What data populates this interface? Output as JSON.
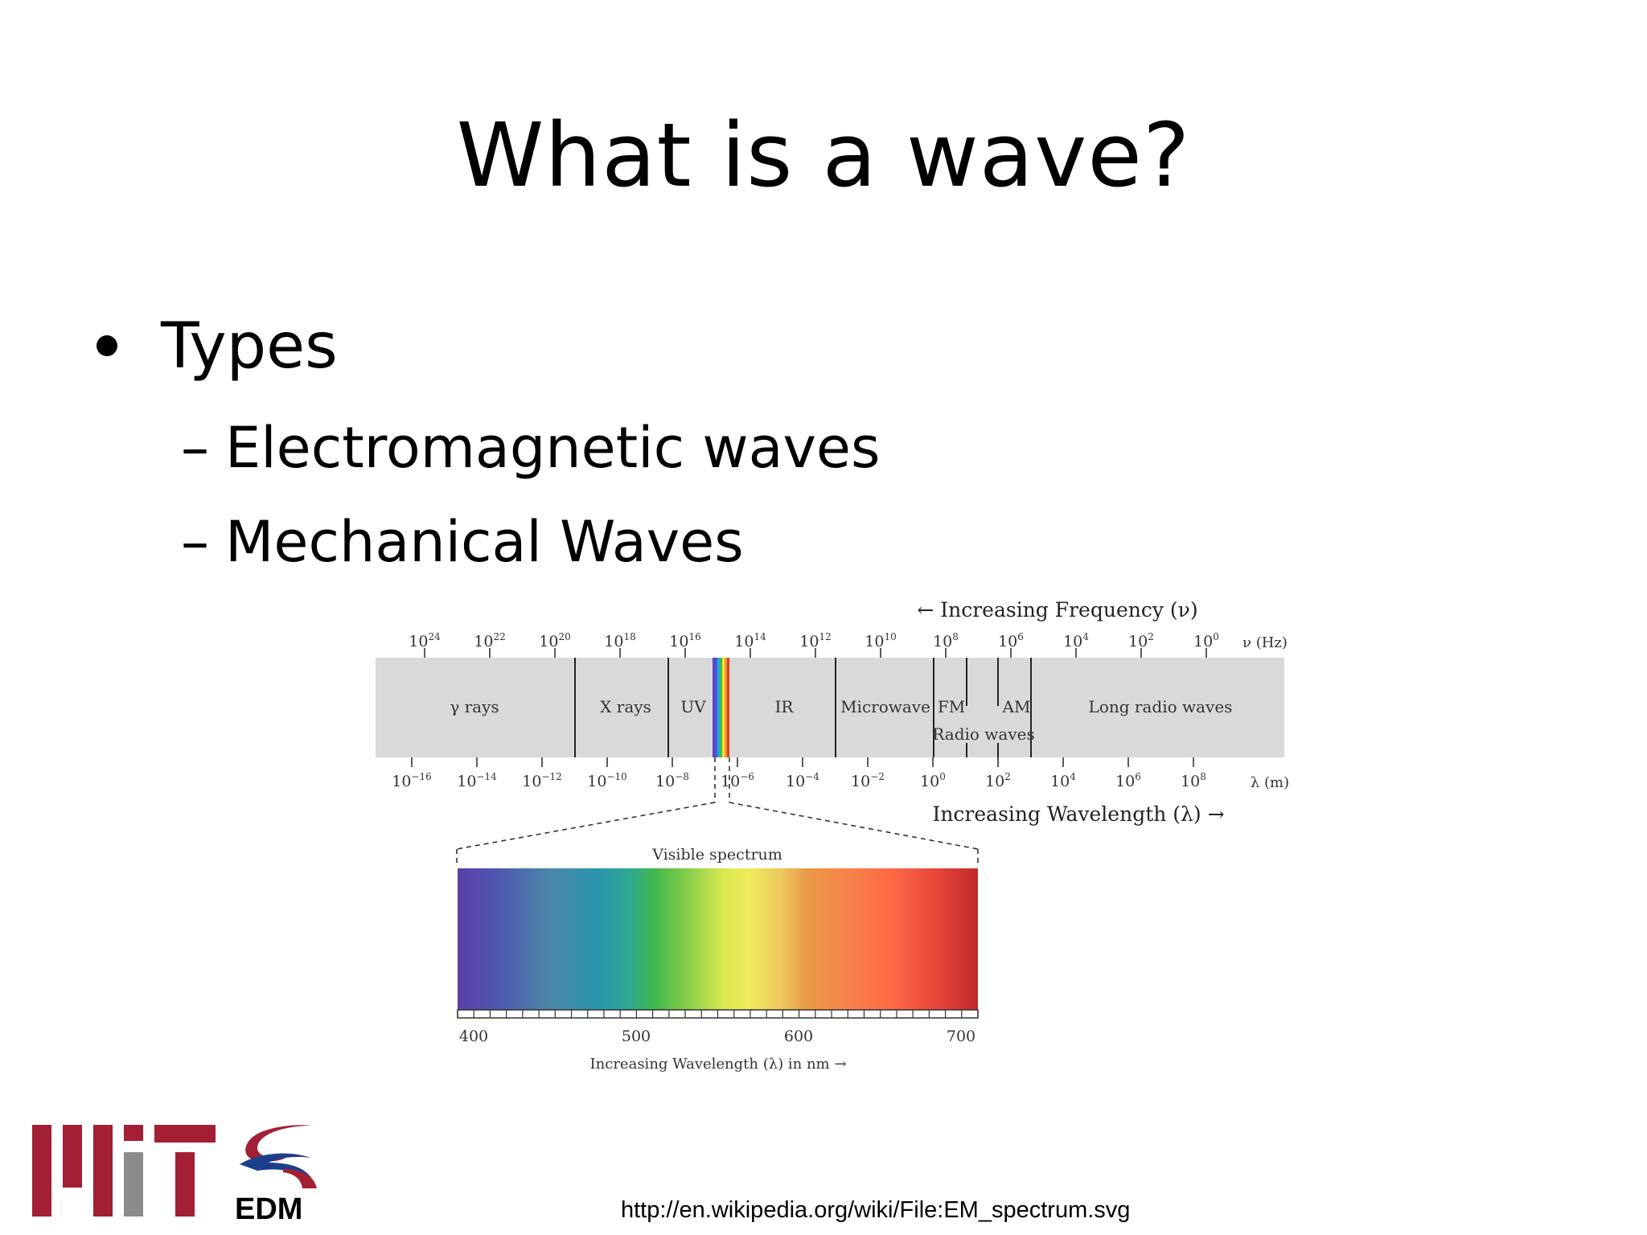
{
  "slide": {
    "title": "What is a wave?",
    "bullet": "Types",
    "sub_bullets": [
      "Electromagnetic waves",
      "Mechanical Waves"
    ],
    "source": "http://en.wikipedia.org/wiki/File:EM_spectrum.svg"
  },
  "logos": {
    "edm_text": "EDM",
    "mit_color": "#a31f34",
    "mit_gray": "#8a8b8c"
  },
  "spectrum": {
    "frequency_heading": "← Increasing Frequency (ν)",
    "frequency_unit": "ν (Hz)",
    "frequency_ticks": [
      {
        "base": "10",
        "exp": "24"
      },
      {
        "base": "10",
        "exp": "22"
      },
      {
        "base": "10",
        "exp": "20"
      },
      {
        "base": "10",
        "exp": "18"
      },
      {
        "base": "10",
        "exp": "16"
      },
      {
        "base": "10",
        "exp": "14"
      },
      {
        "base": "10",
        "exp": "12"
      },
      {
        "base": "10",
        "exp": "10"
      },
      {
        "base": "10",
        "exp": "8"
      },
      {
        "base": "10",
        "exp": "6"
      },
      {
        "base": "10",
        "exp": "4"
      },
      {
        "base": "10",
        "exp": "2"
      },
      {
        "base": "10",
        "exp": "0"
      }
    ],
    "wavelength_heading": "Increasing Wavelength (λ) →",
    "wavelength_unit": "λ (m)",
    "wavelength_ticks": [
      {
        "base": "10",
        "exp": "−16"
      },
      {
        "base": "10",
        "exp": "−14"
      },
      {
        "base": "10",
        "exp": "−12"
      },
      {
        "base": "10",
        "exp": "−10"
      },
      {
        "base": "10",
        "exp": "−8"
      },
      {
        "base": "10",
        "exp": "−6"
      },
      {
        "base": "10",
        "exp": "−4"
      },
      {
        "base": "10",
        "exp": "−2"
      },
      {
        "base": "10",
        "exp": "0"
      },
      {
        "base": "10",
        "exp": "2"
      },
      {
        "base": "10",
        "exp": "4"
      },
      {
        "base": "10",
        "exp": "6"
      },
      {
        "base": "10",
        "exp": "8"
      }
    ],
    "regions": {
      "gamma": "γ rays",
      "xray": "X rays",
      "uv": "UV",
      "ir": "IR",
      "microwave": "Microwave",
      "fm": "FM",
      "am": "AM",
      "radio": "Radio waves",
      "long_radio": "Long radio waves"
    },
    "visible_title": "Visible spectrum",
    "visible_ticks": [
      "400",
      "500",
      "600",
      "700"
    ],
    "visible_axis_label": "Increasing Wavelength (λ) in nm →",
    "band_color": "#d9d9d9"
  }
}
